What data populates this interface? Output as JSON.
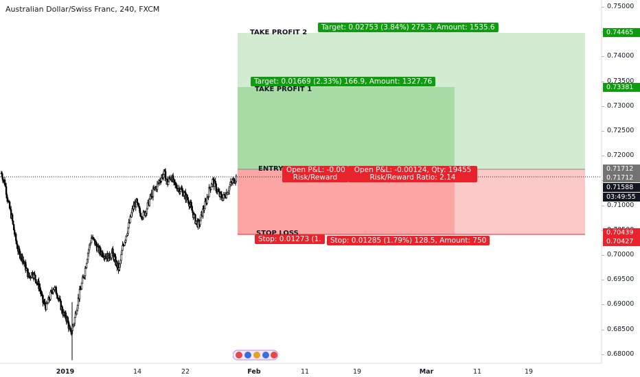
{
  "chart_title": "Australian Dollar/Swiss Franc, 240, FXCM",
  "price_axis": {
    "ticks": [
      "0.75000",
      "0.74500",
      "0.74000",
      "0.73500",
      "0.73000",
      "0.72500",
      "0.72000",
      "0.71500",
      "0.71000",
      "0.70500",
      "0.70000",
      "0.69500",
      "0.69000",
      "0.68500",
      "0.68000"
    ]
  },
  "time_axis": {
    "ticks": [
      "2019",
      "14",
      "22",
      "Feb",
      "11",
      "19",
      "Mar",
      "11",
      "19"
    ]
  },
  "price_badges": {
    "tp2": "0.74465",
    "tp1": "0.73381",
    "entry_a": "0.71712",
    "entry_b": "0.71712",
    "current": "0.71588",
    "countdown": "03:49:55",
    "stop_a": "0.70439",
    "stop_b": "0.70427"
  },
  "labels": {
    "take_profit_2": "TAKE PROFIT 2",
    "take_profit_1": "TAKE PROFIT 1",
    "entry": "ENTRY",
    "stop_loss": "STOP LOSS"
  },
  "info_tags": {
    "target_2": "Target: 0.02753 (3.84%) 275.3, Amount: 1535.6",
    "target_1": "Target: 0.01669 (2.33%) 166.9, Amount: 1327.76",
    "pnl_short": "Open P&L: -0.00",
    "rr_short": "Risk/Reward",
    "pnl_long": "Open P&L: -0.00124, Qty: 19455",
    "rr_long": "Risk/Reward Ratio: 2.14",
    "stop_short": "Stop: 0.01273 (1.",
    "stop_long": "Stop: 0.01285 (1.79%) 128.5, Amount: 750"
  },
  "colors": {
    "profit_zone_light": "#d3ecd1",
    "profit_zone": "#a7dba3",
    "loss_zone_light": "#fcc9c9",
    "loss_zone": "#fca5a5",
    "green_tag": "#0f9d0f",
    "red_tag": "#e8232b",
    "candle": "#000000"
  },
  "chart_data": {
    "type": "candlestick",
    "symbol": "Australian Dollar/Swiss Franc",
    "interval": "240",
    "source": "FXCM",
    "ylim": [
      0.678,
      0.752
    ],
    "y_scale": "linear",
    "grid": false,
    "positions": [
      {
        "name": "TAKE PROFIT 2",
        "entry": 0.71712,
        "target": 0.74465,
        "stop": 0.70427
      },
      {
        "name": "TAKE PROFIT 1",
        "entry": 0.71712,
        "target": 0.73381,
        "stop": 0.70439
      }
    ],
    "last_price": 0.71588,
    "path_closes": [
      0.7165,
      0.7145,
      0.7105,
      0.7075,
      0.7035,
      0.7005,
      0.6995,
      0.6975,
      0.6955,
      0.6965,
      0.695,
      0.6935,
      0.6905,
      0.6895,
      0.6915,
      0.6935,
      0.6925,
      0.69,
      0.688,
      0.687,
      0.684,
      0.6865,
      0.6905,
      0.6935,
      0.6965,
      0.7005,
      0.7035,
      0.7025,
      0.701,
      0.7005,
      0.7,
      0.6995,
      0.7005,
      0.6985,
      0.697,
      0.7015,
      0.704,
      0.7065,
      0.7095,
      0.7105,
      0.7085,
      0.708,
      0.7095,
      0.7115,
      0.713,
      0.714,
      0.7155,
      0.7165,
      0.7145,
      0.716,
      0.714,
      0.7135,
      0.713,
      0.712,
      0.711,
      0.709,
      0.707,
      0.706,
      0.7085,
      0.7105,
      0.713,
      0.715,
      0.7135,
      0.712,
      0.7115,
      0.7125,
      0.714,
      0.715,
      0.7158
    ]
  }
}
